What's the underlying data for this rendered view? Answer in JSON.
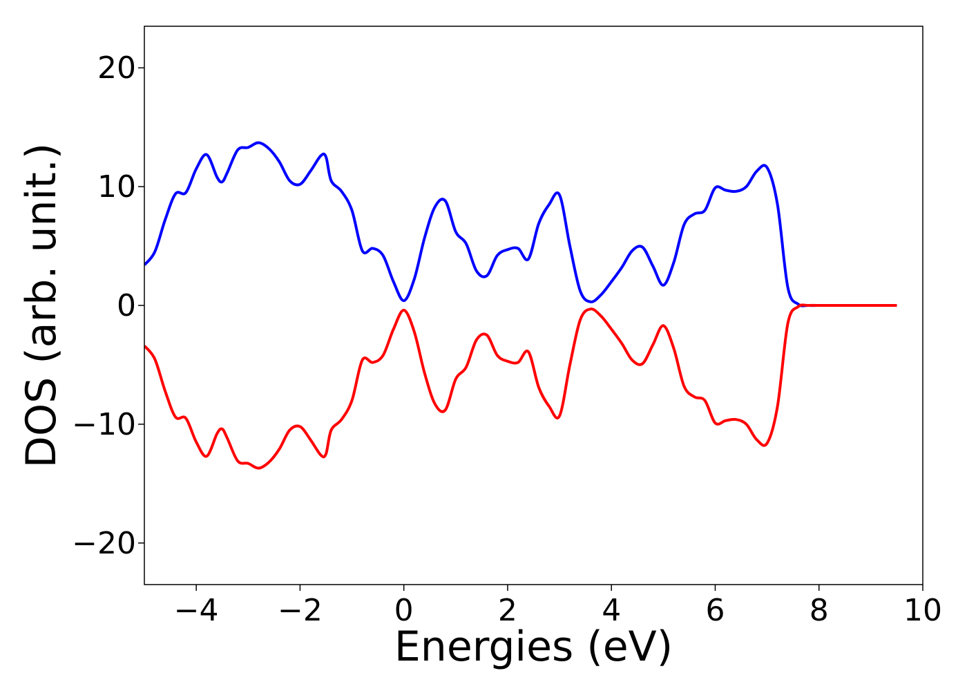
{
  "chart_data": {
    "type": "line",
    "xlabel": "Energies (eV)",
    "ylabel": "DOS (arb. unit.)",
    "xlim": [
      -5,
      10
    ],
    "ylim": [
      -23.5,
      23.5
    ],
    "xticks": [
      -4,
      -2,
      0,
      2,
      4,
      6,
      8,
      10
    ],
    "xtick_labels": [
      "−4",
      "−2",
      "0",
      "2",
      "4",
      "6",
      "8",
      "10"
    ],
    "yticks": [
      -20,
      -10,
      0,
      10,
      20
    ],
    "ytick_labels": [
      "−20",
      "−10",
      "0",
      "10",
      "20"
    ],
    "grid": false,
    "series": [
      {
        "color": "#0000ff",
        "x": [
          -5.0,
          -4.8,
          -4.6,
          -4.4,
          -4.2,
          -4.0,
          -3.8,
          -3.6,
          -3.5,
          -3.4,
          -3.2,
          -3.0,
          -2.8,
          -2.6,
          -2.4,
          -2.2,
          -2.0,
          -1.8,
          -1.6,
          -1.5,
          -1.4,
          -1.2,
          -1.0,
          -0.8,
          -0.6,
          -0.4,
          -0.2,
          0.0,
          0.2,
          0.4,
          0.6,
          0.8,
          1.0,
          1.2,
          1.4,
          1.6,
          1.8,
          2.0,
          2.2,
          2.4,
          2.6,
          2.8,
          3.0,
          3.2,
          3.4,
          3.6,
          3.8,
          4.0,
          4.2,
          4.4,
          4.6,
          4.8,
          5.0,
          5.2,
          5.4,
          5.6,
          5.8,
          6.0,
          6.2,
          6.4,
          6.6,
          6.8,
          7.0,
          7.2,
          7.4,
          7.6,
          7.8,
          8.0,
          8.5,
          9.0,
          9.5
        ],
        "y": [
          3.4,
          4.5,
          7.2,
          9.4,
          9.5,
          11.5,
          12.7,
          10.8,
          10.4,
          11.2,
          13.1,
          13.3,
          13.7,
          13.2,
          12.1,
          10.5,
          10.2,
          11.3,
          12.6,
          12.5,
          10.5,
          9.6,
          8.0,
          4.6,
          4.8,
          4.2,
          2.0,
          0.4,
          2.2,
          5.7,
          8.3,
          8.8,
          6.2,
          5.2,
          2.9,
          2.5,
          4.2,
          4.7,
          4.8,
          3.9,
          6.9,
          8.5,
          9.3,
          5.0,
          1.2,
          0.3,
          0.9,
          2.0,
          3.2,
          4.6,
          4.9,
          3.3,
          1.7,
          3.6,
          6.8,
          7.7,
          8.0,
          9.9,
          9.7,
          9.6,
          10.0,
          11.3,
          11.6,
          8.5,
          1.5,
          0.1,
          0.0,
          0.0,
          0.0,
          0.0,
          0.0
        ]
      },
      {
        "color": "#ff0000",
        "x": [
          -5.0,
          -4.8,
          -4.6,
          -4.4,
          -4.2,
          -4.0,
          -3.8,
          -3.6,
          -3.5,
          -3.4,
          -3.2,
          -3.0,
          -2.8,
          -2.6,
          -2.4,
          -2.2,
          -2.0,
          -1.8,
          -1.6,
          -1.5,
          -1.4,
          -1.2,
          -1.0,
          -0.8,
          -0.6,
          -0.4,
          -0.2,
          0.0,
          0.2,
          0.4,
          0.6,
          0.8,
          1.0,
          1.2,
          1.4,
          1.6,
          1.8,
          2.0,
          2.2,
          2.4,
          2.6,
          2.8,
          3.0,
          3.2,
          3.4,
          3.6,
          3.8,
          4.0,
          4.2,
          4.4,
          4.6,
          4.8,
          5.0,
          5.2,
          5.4,
          5.6,
          5.8,
          6.0,
          6.2,
          6.4,
          6.6,
          6.8,
          7.0,
          7.2,
          7.4,
          7.6,
          7.8,
          8.0,
          8.5,
          9.0,
          9.5
        ],
        "y": [
          -3.4,
          -4.5,
          -7.2,
          -9.4,
          -9.5,
          -11.5,
          -12.7,
          -10.8,
          -10.4,
          -11.2,
          -13.1,
          -13.3,
          -13.7,
          -13.2,
          -12.1,
          -10.5,
          -10.2,
          -11.3,
          -12.6,
          -12.5,
          -10.5,
          -9.6,
          -8.0,
          -4.6,
          -4.8,
          -4.2,
          -2.0,
          -0.4,
          -2.2,
          -5.7,
          -8.3,
          -8.8,
          -6.2,
          -5.2,
          -2.9,
          -2.5,
          -4.2,
          -4.7,
          -4.8,
          -3.9,
          -6.9,
          -8.5,
          -9.3,
          -5.0,
          -1.2,
          -0.3,
          -0.9,
          -2.0,
          -3.2,
          -4.6,
          -4.9,
          -3.3,
          -1.7,
          -3.6,
          -6.8,
          -7.7,
          -8.0,
          -9.9,
          -9.7,
          -9.6,
          -10.0,
          -11.3,
          -11.6,
          -8.5,
          -1.5,
          -0.1,
          0.0,
          0.0,
          0.0,
          0.0,
          0.0
        ]
      }
    ]
  }
}
